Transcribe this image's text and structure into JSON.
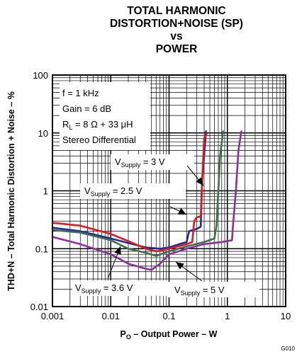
{
  "chart_data": {
    "type": "line",
    "title_lines": [
      "TOTAL HARMONIC",
      "DISTORTION+NOISE (SP)",
      "vs",
      "POWER"
    ],
    "xlabel": {
      "main": "P",
      "sub": "O",
      "rest": " – Output Power – W"
    },
    "ylabel": "THD+N – Total Harmonic Distortion + Noise – %",
    "xscale": "log",
    "yscale": "log",
    "xlim": [
      0.001,
      10
    ],
    "ylim": [
      0.01,
      100
    ],
    "x_tick_labels": [
      "0.001",
      "0.01",
      "0.1",
      "1",
      "10"
    ],
    "x_tick_values": [
      0.001,
      0.01,
      0.1,
      1,
      10
    ],
    "y_tick_labels": [
      "0.01",
      "0.1",
      "1",
      "10",
      "100"
    ],
    "y_tick_values": [
      0.01,
      0.1,
      1,
      10,
      100
    ],
    "grid": true,
    "conditions": [
      {
        "main": "f = 1 kHz"
      },
      {
        "main": "Gain = 6 dB"
      },
      {
        "main": "R",
        "sub": "L",
        "rest": " = 8 Ω + 33 μH"
      },
      {
        "main": "Stereo Differential"
      }
    ],
    "figure_id": "G010",
    "series": [
      {
        "name": "V_Supply = 3 V",
        "color": "#1f2a9c",
        "label": {
          "main": "V",
          "sub": "Supply",
          "rest": " = 3 V"
        },
        "points": [
          [
            0.001,
            0.23
          ],
          [
            0.003,
            0.2
          ],
          [
            0.01,
            0.15
          ],
          [
            0.02,
            0.125
          ],
          [
            0.04,
            0.105
          ],
          [
            0.07,
            0.1
          ],
          [
            0.1,
            0.105
          ],
          [
            0.15,
            0.12
          ],
          [
            0.2,
            0.13
          ],
          [
            0.22,
            0.2
          ],
          [
            0.3,
            0.22
          ],
          [
            0.35,
            0.24
          ],
          [
            0.37,
            1.5
          ],
          [
            0.4,
            4
          ],
          [
            0.43,
            11
          ]
        ]
      },
      {
        "name": "V_Supply = 2.5 V",
        "color": "#e0191e",
        "label": {
          "main": "V",
          "sub": "Supply",
          "rest": " = 2.5 V"
        },
        "points": [
          [
            0.001,
            0.28
          ],
          [
            0.003,
            0.25
          ],
          [
            0.01,
            0.18
          ],
          [
            0.02,
            0.135
          ],
          [
            0.04,
            0.1
          ],
          [
            0.06,
            0.09
          ],
          [
            0.1,
            0.1
          ],
          [
            0.2,
            0.12
          ],
          [
            0.25,
            0.13
          ],
          [
            0.27,
            0.3
          ],
          [
            0.3,
            0.35
          ],
          [
            0.35,
            0.36
          ],
          [
            0.37,
            1.5
          ],
          [
            0.4,
            8
          ],
          [
            0.45,
            10
          ]
        ]
      },
      {
        "name": "V_Supply = 3.6 V",
        "color": "#3d7150",
        "label": {
          "main": "V",
          "sub": "Supply",
          "rest": " = 3.6 V"
        },
        "points": [
          [
            0.001,
            0.21
          ],
          [
            0.003,
            0.19
          ],
          [
            0.01,
            0.14
          ],
          [
            0.02,
            0.1
          ],
          [
            0.04,
            0.085
          ],
          [
            0.06,
            0.075
          ],
          [
            0.1,
            0.09
          ],
          [
            0.2,
            0.11
          ],
          [
            0.4,
            0.13
          ],
          [
            0.6,
            0.15
          ],
          [
            0.65,
            0.25
          ],
          [
            0.7,
            1
          ],
          [
            0.75,
            4
          ],
          [
            0.85,
            11
          ]
        ]
      },
      {
        "name": "V_Supply = 5 V",
        "color": "#8e2e9e",
        "label": {
          "main": "V",
          "sub": "Supply",
          "rest": " = 5 V"
        },
        "points": [
          [
            0.001,
            0.16
          ],
          [
            0.003,
            0.12
          ],
          [
            0.01,
            0.08
          ],
          [
            0.02,
            0.055
          ],
          [
            0.04,
            0.045
          ],
          [
            0.05,
            0.043
          ],
          [
            0.07,
            0.055
          ],
          [
            0.1,
            0.08
          ],
          [
            0.2,
            0.1
          ],
          [
            0.4,
            0.12
          ],
          [
            0.8,
            0.13
          ],
          [
            1.2,
            0.14
          ],
          [
            1.25,
            0.25
          ],
          [
            1.4,
            1
          ],
          [
            1.55,
            5
          ],
          [
            1.75,
            11
          ]
        ]
      }
    ]
  }
}
